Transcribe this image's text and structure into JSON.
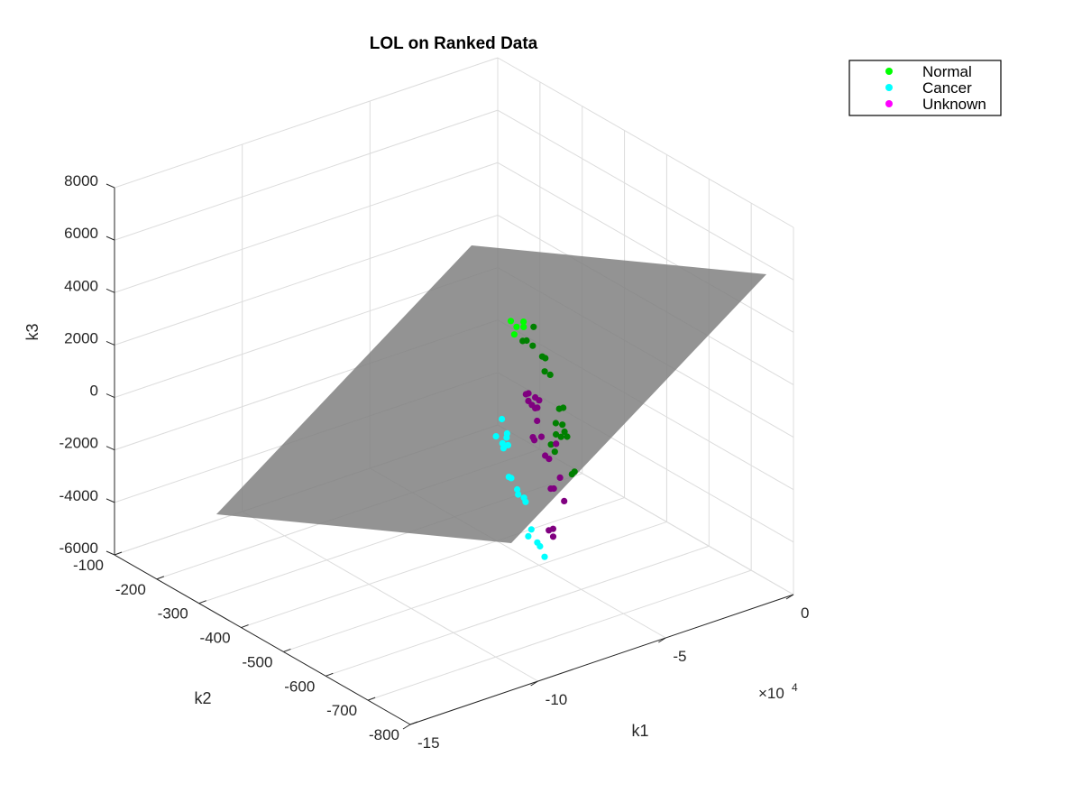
{
  "chart_data": {
    "type": "scatter",
    "title": "LOL on Ranked Data",
    "xlabel": "k1",
    "ylabel": "k2",
    "zlabel": "k3",
    "x_exponent_label": "×10",
    "x_exponent_power": "4",
    "xlim": [
      -150000,
      0
    ],
    "ylim": [
      -800,
      -100
    ],
    "zlim": [
      -6000,
      8000
    ],
    "x_ticks": [
      -150000,
      -100000,
      -50000,
      0
    ],
    "x_tick_labels": [
      "-15",
      "-10",
      "-5",
      "0"
    ],
    "y_ticks": [
      -100,
      -200,
      -300,
      -400,
      -500,
      -600,
      -700,
      -800
    ],
    "y_tick_labels": [
      "-100",
      "-200",
      "-300",
      "-400",
      "-500",
      "-600",
      "-700",
      "-800"
    ],
    "z_ticks": [
      8000,
      6000,
      4000,
      2000,
      0,
      -2000,
      -4000,
      -6000
    ],
    "z_tick_labels": [
      "8000",
      "6000",
      "4000",
      "2000",
      "0",
      "-2000",
      "-4000",
      "-6000"
    ],
    "grid": true,
    "legend_position": "top-right",
    "plane": {
      "color": "#808080",
      "opacity": 0.85
    },
    "colors": {
      "Normal": "#00ff00",
      "Cancer": "#00ffff",
      "Unknown": "#ff00ff"
    },
    "series": [
      {
        "name": "Normal",
        "points": [
          [
            -57937,
            -495,
            3300
          ],
          [
            -60200,
            -495,
            3600
          ],
          [
            -57040,
            -504,
            2820
          ],
          [
            -56050,
            -500,
            3480
          ],
          [
            -60830,
            -507,
            3220
          ],
          [
            -55980,
            -500,
            3280
          ],
          [
            -53700,
            -493,
            2620
          ],
          [
            -48790,
            -480,
            2860
          ],
          [
            -50790,
            -490,
            2300
          ],
          [
            -42570,
            -470,
            1370
          ],
          [
            -44420,
            -474,
            1530
          ],
          [
            -46920,
            -495,
            1240
          ],
          [
            -41300,
            -474,
            730
          ],
          [
            -41740,
            -498,
            -330
          ],
          [
            -41430,
            -488,
            -980
          ],
          [
            -33200,
            -456,
            -960
          ],
          [
            -37200,
            -478,
            -1270
          ],
          [
            -37200,
            -483,
            -1490
          ],
          [
            -33200,
            -465,
            -1980
          ],
          [
            -37760,
            -504,
            -2900
          ],
          [
            -34100,
            -488,
            -3070
          ],
          [
            -44680,
            -520,
            -1100
          ],
          [
            -49140,
            -535,
            -720
          ],
          [
            -53240,
            -557,
            -1040
          ],
          [
            -56390,
            -567,
            -570
          ]
        ]
      },
      {
        "name": "Cancer",
        "points": [
          [
            -91130,
            -647,
            1630
          ],
          [
            -86020,
            -630,
            1960
          ],
          [
            -87280,
            -639,
            1160
          ],
          [
            -87860,
            -645,
            1050
          ],
          [
            -84370,
            -631,
            1210
          ],
          [
            -84130,
            -631,
            1360
          ],
          [
            -82640,
            -624,
            800
          ],
          [
            -86620,
            -650,
            -40
          ],
          [
            -84510,
            -643,
            -220
          ],
          [
            -80010,
            -630,
            -920
          ],
          [
            -79150,
            -627,
            -1170
          ],
          [
            -75380,
            -618,
            -1500
          ],
          [
            -74750,
            -618,
            -1680
          ],
          [
            -75670,
            -630,
            -2850
          ],
          [
            -71180,
            -610,
            -2920
          ],
          [
            -68700,
            -609,
            -3510
          ],
          [
            -66620,
            -603,
            -3780
          ],
          [
            -63850,
            -597,
            -4330
          ]
        ]
      },
      {
        "name": "Unknown",
        "points": [
          [
            -68680,
            -582,
            1890
          ],
          [
            -66530,
            -575,
            1790
          ],
          [
            -67220,
            -579,
            1560
          ],
          [
            -64010,
            -568,
            1200
          ],
          [
            -61570,
            -561,
            1340
          ],
          [
            -59370,
            -557,
            1120
          ],
          [
            -61060,
            -563,
            950
          ],
          [
            -62230,
            -565,
            990
          ],
          [
            -61460,
            -565,
            480
          ],
          [
            -67280,
            -590,
            280
          ],
          [
            -66690,
            -590,
            150
          ],
          [
            -59800,
            -565,
            -180
          ],
          [
            -57520,
            -560,
            -1020
          ],
          [
            -55160,
            -555,
            -1270
          ],
          [
            -49110,
            -535,
            -1080
          ],
          [
            -58580,
            -580,
            -2060
          ],
          [
            -55770,
            -570,
            -2240
          ],
          [
            -50020,
            -550,
            -2200
          ],
          [
            -63010,
            -602,
            -3300
          ],
          [
            -58880,
            -587,
            -3520
          ],
          [
            -60500,
            -597,
            -3670
          ],
          [
            -50060,
            -560,
            -3000
          ]
        ]
      }
    ]
  }
}
